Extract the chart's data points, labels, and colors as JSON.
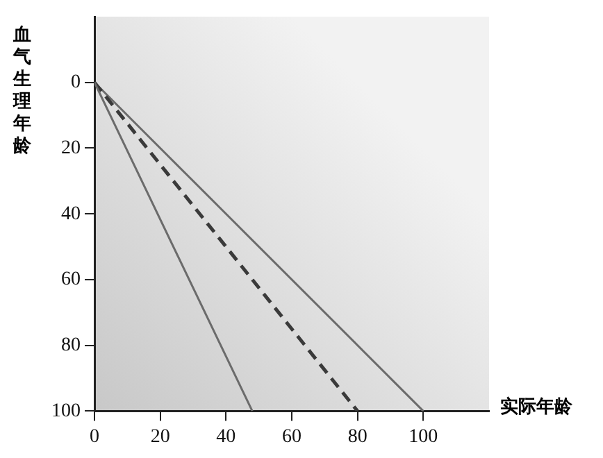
{
  "chart_data": {
    "type": "line",
    "xlabel": "实际年龄",
    "ylabel": "血气生理年龄",
    "xlim": [
      0,
      120
    ],
    "xticks": [
      0,
      20,
      40,
      60,
      80,
      100
    ],
    "ylim": [
      100,
      -20
    ],
    "yticks": [
      0,
      20,
      40,
      60,
      80,
      100
    ],
    "marker": "none",
    "series": [
      {
        "color": "#6b6b6b",
        "x": [
          0,
          48
        ],
        "values": [
          0,
          100
        ],
        "line_style": "solid"
      },
      {
        "color": "#3a3a3a",
        "x": [
          0,
          80
        ],
        "values": [
          0,
          100
        ],
        "line_style": "dashed"
      },
      {
        "color": "#6b6b6b",
        "x": [
          0,
          100
        ],
        "values": [
          0,
          100
        ],
        "line_style": "solid"
      }
    ]
  }
}
